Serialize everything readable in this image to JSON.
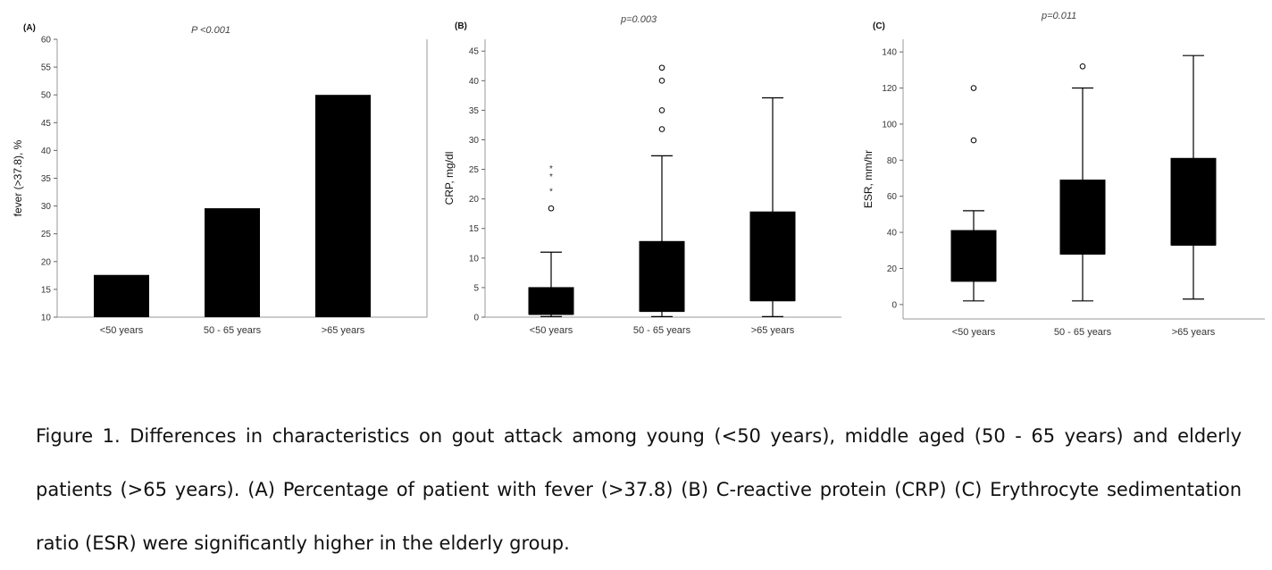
{
  "chart_data": [
    {
      "type": "bar",
      "panel_label": "(A)",
      "title": "P <0.001",
      "ylabel": "fever (>37.8), %",
      "xlabel": "",
      "categories": [
        "<50 years",
        "50 - 65 years",
        ">65 years"
      ],
      "values": [
        17.6,
        29.6,
        50.0
      ],
      "ylim": [
        10,
        60
      ],
      "yticks": [
        10,
        15,
        20,
        25,
        30,
        35,
        40,
        45,
        50,
        55,
        60
      ],
      "grid": false,
      "bar_color": "#000000"
    },
    {
      "type": "box",
      "panel_label": "(B)",
      "title": "p=0.003",
      "ylabel": "CRP, mg/dl",
      "xlabel": "",
      "categories": [
        "<50 years",
        "50 - 65 years",
        ">65 years"
      ],
      "boxes": [
        {
          "min": 0.1,
          "q1": 0.5,
          "median": 0.5,
          "q3": 5.0,
          "max": 11.0
        },
        {
          "min": 0.1,
          "q1": 1.0,
          "median": 1.0,
          "q3": 12.8,
          "max": 27.3
        },
        {
          "min": 0.1,
          "q1": 2.8,
          "median": 2.8,
          "q3": 17.8,
          "max": 37.1
        }
      ],
      "outliers": [
        {
          "category": "<50 years",
          "value": 18.4,
          "marker": "circle"
        },
        {
          "category": "50 - 65 years",
          "value": 31.8,
          "marker": "circle"
        },
        {
          "category": "50 - 65 years",
          "value": 35.0,
          "marker": "circle"
        },
        {
          "category": "50 - 65 years",
          "value": 40.0,
          "marker": "circle"
        },
        {
          "category": "50 - 65 years",
          "value": 42.2,
          "marker": "circle"
        }
      ],
      "extremes": [
        {
          "category": "<50 years",
          "value": 21.5,
          "marker": "star"
        },
        {
          "category": "<50 years",
          "value": 24.0,
          "marker": "star"
        },
        {
          "category": "<50 years",
          "value": 25.4,
          "marker": "star"
        }
      ],
      "ylim": [
        0,
        47
      ],
      "yticks": [
        0,
        5,
        10,
        15,
        20,
        25,
        30,
        35,
        40,
        45
      ],
      "grid": false
    },
    {
      "type": "box",
      "panel_label": "(C)",
      "title": "p=0.011",
      "ylabel": "ESR, mm/hr",
      "xlabel": "",
      "categories": [
        "<50 years",
        "50 - 65 years",
        ">65 years"
      ],
      "boxes": [
        {
          "min": 2,
          "q1": 13,
          "median": 13,
          "q3": 41,
          "max": 52
        },
        {
          "min": 2,
          "q1": 28,
          "median": 28,
          "q3": 69,
          "max": 120
        },
        {
          "min": 3,
          "q1": 33,
          "median": 33,
          "q3": 81,
          "max": 138
        }
      ],
      "outliers": [
        {
          "category": "<50 years",
          "value": 91,
          "marker": "circle"
        },
        {
          "category": "<50 years",
          "value": 120,
          "marker": "circle"
        },
        {
          "category": "50 - 65 years",
          "value": 132,
          "marker": "circle"
        }
      ],
      "extremes": [],
      "ylim": [
        -8,
        147
      ],
      "yticks": [
        0,
        20,
        40,
        60,
        80,
        100,
        120,
        140
      ],
      "grid": false
    }
  ],
  "caption": "Figure 1. Differences in characteristics on gout attack among young (<50 years), middle aged (50 - 65 years) and elderly patients (>65 years). (A) Percentage of patient with fever (>37.8) (B) C-reactive protein (CRP) (C) Erythrocyte sedimentation ratio (ESR) were significantly higher in the elderly group."
}
